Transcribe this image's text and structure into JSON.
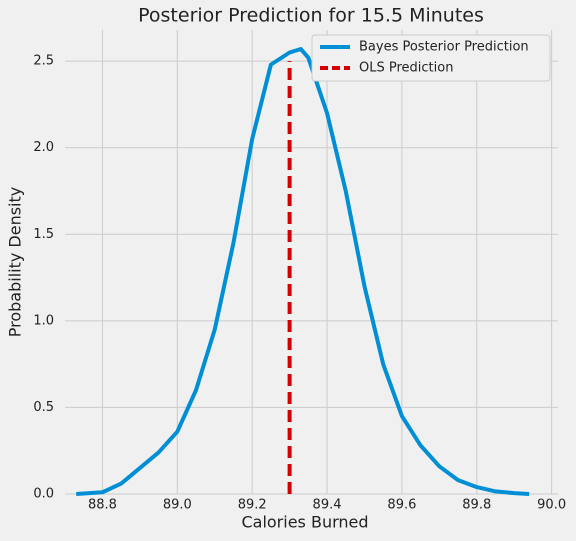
{
  "chart_data": {
    "type": "line",
    "title": "Posterior Prediction for 15.5 Minutes",
    "xlabel": "Calories Burned",
    "ylabel": "Probability Density",
    "xlim": [
      88.7,
      90.017
    ],
    "ylim": [
      0,
      2.68
    ],
    "xticks": [
      88.8,
      {
        "value": 89,
        "label": "89.0"
      },
      89.2,
      89.4,
      89.6,
      89.8,
      {
        "value": 90,
        "label": "90.0"
      }
    ],
    "yticks": [
      {
        "value": 0,
        "label": "0.0"
      },
      0.5,
      {
        "value": 1,
        "label": "1.0"
      },
      1.5,
      {
        "value": 2,
        "label": "2.0"
      },
      2.5
    ],
    "grid": true,
    "legend": "upper right",
    "series": [
      {
        "name": "Bayes Posterior Prediction",
        "color": "#008fd5",
        "linestyle": "solid",
        "x": [
          88.73,
          88.8,
          88.85,
          88.9,
          88.95,
          89.0,
          89.05,
          89.1,
          89.15,
          89.2,
          89.25,
          89.3,
          89.33,
          89.35,
          89.4,
          89.45,
          89.5,
          89.55,
          89.6,
          89.65,
          89.7,
          89.75,
          89.8,
          89.85,
          89.9,
          89.94
        ],
        "values": [
          0,
          0.01,
          0.06,
          0.15,
          0.24,
          0.36,
          0.6,
          0.95,
          1.45,
          2.05,
          2.48,
          2.55,
          2.57,
          2.52,
          2.2,
          1.75,
          1.2,
          0.75,
          0.45,
          0.28,
          0.16,
          0.08,
          0.04,
          0.015,
          0.005,
          0
        ]
      },
      {
        "name": "OLS Prediction",
        "color": "#d40000",
        "linestyle": "dashed",
        "x": [
          89.3,
          89.3
        ],
        "values": [
          0,
          2.5
        ]
      }
    ]
  }
}
